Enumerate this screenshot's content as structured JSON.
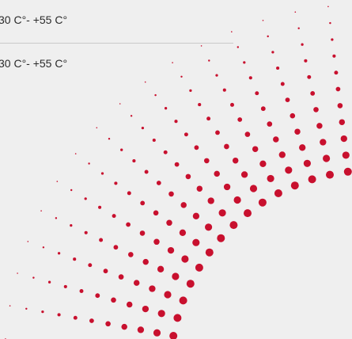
{
  "rows": [
    "30 C°- +55 C°",
    "30 C°- +55 C°"
  ]
}
